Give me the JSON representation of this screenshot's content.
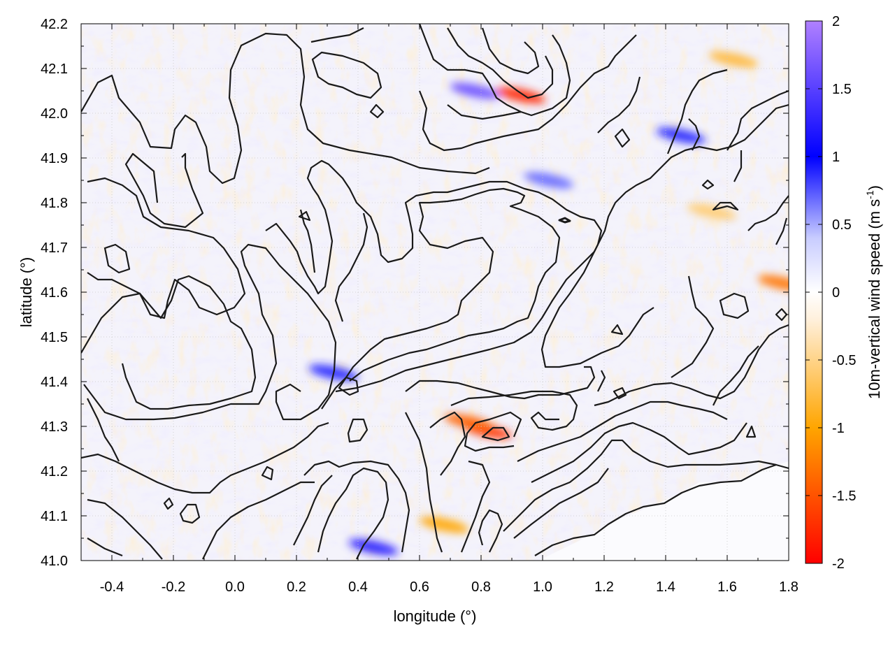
{
  "chart_data": {
    "type": "heatmap",
    "title": "",
    "xlabel": "longitude (°)",
    "ylabel": "latitude (°)",
    "xlim": [
      -0.5,
      1.8
    ],
    "ylim": [
      41.0,
      42.2
    ],
    "x_ticks": [
      "-0.4",
      "-0.2",
      "0.0",
      "0.2",
      "0.4",
      "0.6",
      "0.8",
      "1.0",
      "1.2",
      "1.4",
      "1.6",
      "1.8"
    ],
    "y_ticks": [
      "41.0",
      "41.1",
      "41.2",
      "41.3",
      "41.4",
      "41.5",
      "41.6",
      "41.7",
      "41.8",
      "41.9",
      "42.0",
      "42.1",
      "42.2"
    ],
    "grid": true,
    "colorbar": {
      "label": "10m-vertical wind speed (m s",
      "label_sup": "-1",
      "label_end": ")",
      "range": [
        -2,
        2
      ],
      "ticks": [
        "-2",
        "-1.5",
        "-1",
        "-0.5",
        "0",
        "0.5",
        "1",
        "1.5",
        "2"
      ],
      "colors": [
        "#ff0000",
        "#ff8c00",
        "#ffd27f",
        "#ffffff",
        "#aab0ff",
        "#0000ff",
        "#b080ff"
      ]
    },
    "overlay": "black terrain contour lines",
    "highlights": [
      {
        "lon": 0.78,
        "lat": 42.05,
        "value": 1.6
      },
      {
        "lon": 0.93,
        "lat": 42.04,
        "value": -1.8
      },
      {
        "lon": 0.82,
        "lat": 41.29,
        "value": -1.7
      },
      {
        "lon": 0.76,
        "lat": 41.31,
        "value": -1.4
      },
      {
        "lon": 0.45,
        "lat": 41.03,
        "value": 1.2
      },
      {
        "lon": 1.62,
        "lat": 42.12,
        "value": -0.8
      },
      {
        "lon": 1.78,
        "lat": 41.62,
        "value": -1.3
      },
      {
        "lon": 0.32,
        "lat": 41.42,
        "value": 0.9
      },
      {
        "lon": 1.02,
        "lat": 41.85,
        "value": 0.7
      },
      {
        "lon": 1.45,
        "lat": 41.95,
        "value": 0.9
      },
      {
        "lon": 1.55,
        "lat": 41.78,
        "value": -0.6
      },
      {
        "lon": 0.68,
        "lat": 41.08,
        "value": -1.0
      }
    ]
  }
}
